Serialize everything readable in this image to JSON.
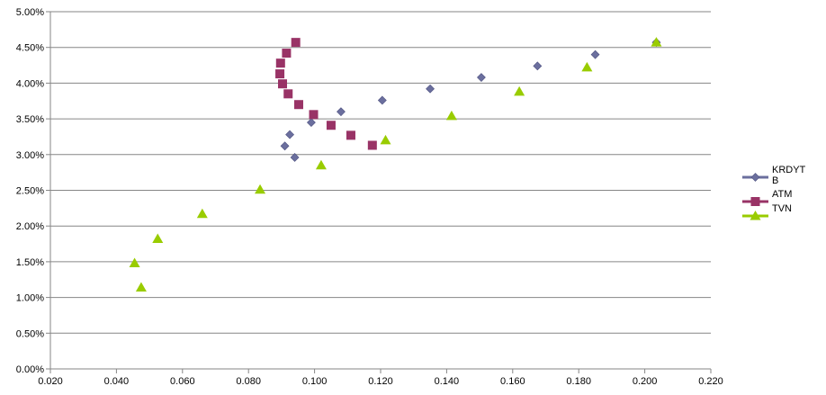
{
  "chart_data": {
    "type": "scatter",
    "title": "",
    "xlabel": "",
    "ylabel": "",
    "xlim": [
      0.02,
      0.22
    ],
    "ylim": [
      0.0,
      5.0
    ],
    "grid": true,
    "legend_position": "right",
    "x_ticks": [
      "0.020",
      "0.040",
      "0.060",
      "0.080",
      "0.100",
      "0.120",
      "0.140",
      "0.160",
      "0.180",
      "0.200",
      "0.220"
    ],
    "y_ticks": [
      "0.00%",
      "0.50%",
      "1.00%",
      "1.50%",
      "2.00%",
      "2.50%",
      "3.00%",
      "3.50%",
      "4.00%",
      "4.50%",
      "5.00%"
    ],
    "series": [
      {
        "name": "KRDYTB",
        "legend_lines": [
          "KRDYT",
          "B"
        ],
        "color": "#6b6f9e",
        "marker": "diamond",
        "points": [
          [
            0.091,
            3.12
          ],
          [
            0.094,
            2.96
          ],
          [
            0.0925,
            3.28
          ],
          [
            0.099,
            3.45
          ],
          [
            0.108,
            3.6
          ],
          [
            0.1205,
            3.76
          ],
          [
            0.135,
            3.92
          ],
          [
            0.1505,
            4.08
          ],
          [
            0.1675,
            4.24
          ],
          [
            0.185,
            4.4
          ],
          [
            0.2035,
            4.57
          ]
        ]
      },
      {
        "name": "ATM",
        "legend_lines": [
          "ATM"
        ],
        "color": "#993366",
        "marker": "square",
        "points": [
          [
            0.0943,
            4.57
          ],
          [
            0.0915,
            4.42
          ],
          [
            0.0897,
            4.28
          ],
          [
            0.0895,
            4.13
          ],
          [
            0.0903,
            3.99
          ],
          [
            0.092,
            3.85
          ],
          [
            0.0952,
            3.7
          ],
          [
            0.0997,
            3.56
          ],
          [
            0.105,
            3.41
          ],
          [
            0.111,
            3.27
          ],
          [
            0.1175,
            3.13
          ]
        ]
      },
      {
        "name": "TVN",
        "legend_lines": [
          "TVN"
        ],
        "color": "#99cc00",
        "marker": "triangle",
        "points": [
          [
            0.0455,
            1.48
          ],
          [
            0.0475,
            1.14
          ],
          [
            0.0525,
            1.82
          ],
          [
            0.066,
            2.17
          ],
          [
            0.0835,
            2.51
          ],
          [
            0.102,
            2.85
          ],
          [
            0.1215,
            3.2
          ],
          [
            0.1415,
            3.54
          ],
          [
            0.162,
            3.88
          ],
          [
            0.1825,
            4.22
          ],
          [
            0.2035,
            4.57
          ]
        ]
      }
    ]
  }
}
